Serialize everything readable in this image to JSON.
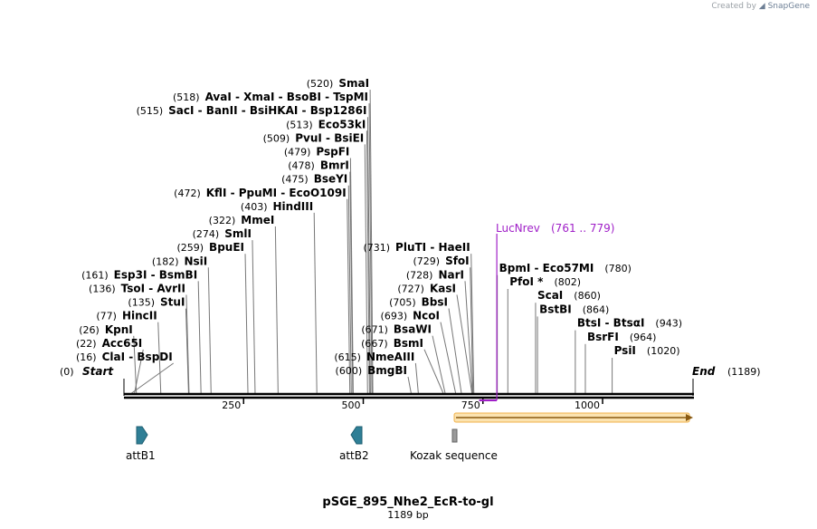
{
  "watermark": {
    "prefix": "Created by",
    "brand": "SnapGene"
  },
  "map": {
    "title": "pSGE_895_Nhe2_EcR-to-gl",
    "length_label": "1189 bp",
    "total_bp": 1189,
    "start_label": "Start",
    "start_pos": "(0)",
    "end_label": "End",
    "end_pos": "(1189)",
    "ticks": [
      {
        "value": 250,
        "label": "250"
      },
      {
        "value": 500,
        "label": "500"
      },
      {
        "value": 750,
        "label": "750"
      },
      {
        "value": 1000,
        "label": "1000"
      }
    ]
  },
  "sites": [
    {
      "name": "ClaI  -  BspDI",
      "pos_label": "(16)",
      "bp": 16,
      "side": "left"
    },
    {
      "name": "Acc65I",
      "pos_label": "(22)",
      "bp": 22,
      "side": "left"
    },
    {
      "name": "KpnI",
      "pos_label": "(26)",
      "bp": 26,
      "side": "left"
    },
    {
      "name": "HincII",
      "pos_label": "(77)",
      "bp": 77,
      "side": "left"
    },
    {
      "name": "StuI",
      "pos_label": "(135)",
      "bp": 135,
      "side": "left"
    },
    {
      "name": "TsoI  -  AvrII",
      "pos_label": "(136)",
      "bp": 136,
      "side": "left"
    },
    {
      "name": "Esp3I  -  BsmBI",
      "pos_label": "(161)",
      "bp": 161,
      "side": "left"
    },
    {
      "name": "NsiI",
      "pos_label": "(182)",
      "bp": 182,
      "side": "left"
    },
    {
      "name": "BpuEI",
      "pos_label": "(259)",
      "bp": 259,
      "side": "left"
    },
    {
      "name": "SmlI",
      "pos_label": "(274)",
      "bp": 274,
      "side": "left"
    },
    {
      "name": "MmeI",
      "pos_label": "(322)",
      "bp": 322,
      "side": "left"
    },
    {
      "name": "HindIII",
      "pos_label": "(403)",
      "bp": 403,
      "side": "left"
    },
    {
      "name": "KflI  -  PpuMI  -  EcoO109I",
      "pos_label": "(472)",
      "bp": 472,
      "side": "left"
    },
    {
      "name": "BseYI",
      "pos_label": "(475)",
      "bp": 475,
      "side": "left"
    },
    {
      "name": "BmrI",
      "pos_label": "(478)",
      "bp": 478,
      "side": "left"
    },
    {
      "name": "PspFI",
      "pos_label": "(479)",
      "bp": 479,
      "side": "left"
    },
    {
      "name": "PvuI  -  BsiEI",
      "pos_label": "(509)",
      "bp": 509,
      "side": "left"
    },
    {
      "name": "Eco53kI",
      "pos_label": "(513)",
      "bp": 513,
      "side": "left"
    },
    {
      "name": "SacI  -  BanII  -  BsiHKAI  -  Bsp1286I",
      "pos_label": "(515)",
      "bp": 515,
      "side": "left"
    },
    {
      "name": "AvaI  -  XmaI  -  BsoBI  -  TspMI",
      "pos_label": "(518)",
      "bp": 518,
      "side": "left"
    },
    {
      "name": "SmaI",
      "pos_label": "(520)",
      "bp": 520,
      "side": "left"
    },
    {
      "name": "BmgBI",
      "pos_label": "(600)",
      "bp": 600,
      "side": "left"
    },
    {
      "name": "NmeAIII",
      "pos_label": "(615)",
      "bp": 615,
      "side": "left"
    },
    {
      "name": "BsmI",
      "pos_label": "(667)",
      "bp": 667,
      "side": "left"
    },
    {
      "name": "BsaWI",
      "pos_label": "(671)",
      "bp": 671,
      "side": "left"
    },
    {
      "name": "NcoI",
      "pos_label": "(693)",
      "bp": 693,
      "side": "left"
    },
    {
      "name": "BbsI",
      "pos_label": "(705)",
      "bp": 705,
      "side": "left"
    },
    {
      "name": "KasI",
      "pos_label": "(727)",
      "bp": 727,
      "side": "left"
    },
    {
      "name": "NarI",
      "pos_label": "(728)",
      "bp": 728,
      "side": "left"
    },
    {
      "name": "SfoI",
      "pos_label": "(729)",
      "bp": 729,
      "side": "left"
    },
    {
      "name": "PluTI  -  HaeII",
      "pos_label": "(731)",
      "bp": 731,
      "side": "left"
    },
    {
      "name": "BpmI  -  Eco57MI",
      "pos_label": "(780)",
      "bp": 780,
      "side": "right"
    },
    {
      "name": "PfoI *",
      "pos_label": "(802)",
      "bp": 802,
      "side": "right"
    },
    {
      "name": "ScaI",
      "pos_label": "(860)",
      "bp": 860,
      "side": "right"
    },
    {
      "name": "BstBI",
      "pos_label": "(864)",
      "bp": 864,
      "side": "right"
    },
    {
      "name": "BtsI  -  BtsαI",
      "pos_label": "(943)",
      "bp": 943,
      "side": "right"
    },
    {
      "name": "BsrFI",
      "pos_label": "(964)",
      "bp": 964,
      "side": "right"
    },
    {
      "name": "PsiI",
      "pos_label": "(1020)",
      "bp": 1020,
      "side": "right"
    }
  ],
  "primer": {
    "name": "LucNrev",
    "range_label": "(761 .. 779)",
    "start": 761,
    "end": 779,
    "color": "#a020c8"
  },
  "orf": {
    "start": 690,
    "end": 1189,
    "direction": "forward",
    "color": "#f0a030"
  },
  "features": [
    {
      "name": "attB1",
      "bp": 35,
      "direction": "right",
      "color": "#2f7f96"
    },
    {
      "name": "attB2",
      "bp": 490,
      "direction": "left",
      "color": "#2f7f96"
    },
    {
      "name": "Kozak sequence",
      "bp": 690,
      "direction": "none",
      "color": "#999999"
    }
  ]
}
